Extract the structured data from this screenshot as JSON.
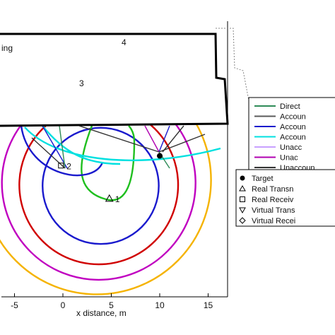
{
  "chart_data": {
    "type": "line",
    "xlabel": "x distance, m",
    "ylabel": "",
    "xlim": [
      -7.5,
      16
    ],
    "xticks": [
      "-5",
      "0",
      "5",
      "10",
      "15"
    ],
    "grid": false,
    "legend_position": "right",
    "annotations": [
      "4",
      "3",
      "2",
      "1",
      "ing"
    ],
    "legend_entries": [
      "Direct",
      "Accoun",
      "Accoun",
      "Accoun",
      "Unacc",
      "Unac",
      "Unaccoun",
      "Target",
      "Real Transn",
      "Real Receiv",
      "Virtual Trans",
      "Virtual Recei"
    ],
    "series": [
      {
        "name": "Direct",
        "color": "#2e8b57"
      },
      {
        "name": "Accoun",
        "color": "#5a5a5a"
      },
      {
        "name": "Accoun",
        "color": "#1a1acd"
      },
      {
        "name": "Accoun",
        "color": "#00e0e0"
      },
      {
        "name": "Unacc",
        "color": "#c8a0ff"
      },
      {
        "name": "Unac",
        "color": "#b000b0"
      },
      {
        "name": "Unaccoun",
        "color": "#333333"
      }
    ],
    "points": [
      {
        "label": "1",
        "x": 4.8,
        "y": -3.2,
        "marker": "triangle"
      },
      {
        "label": "2",
        "x": -0.2,
        "y": 0.2,
        "marker": "square"
      },
      {
        "label": "Target",
        "x": 10,
        "y": 1.2,
        "marker": "dot"
      }
    ],
    "contours": [
      {
        "name": "yellow",
        "color": "#f5b300",
        "cx": 3.5,
        "cy": -1.3,
        "r": 11.8
      },
      {
        "name": "magenta",
        "color": "#c000c0",
        "cx": 3.7,
        "cy": -1.6,
        "r": 10.0
      },
      {
        "name": "red",
        "color": "#d00000",
        "cx": 3.7,
        "cy": -1.8,
        "r": 8.2
      },
      {
        "name": "blue",
        "color": "#1a1acd",
        "cx": 3.9,
        "cy": -1.9,
        "r": 6.0
      }
    ]
  }
}
